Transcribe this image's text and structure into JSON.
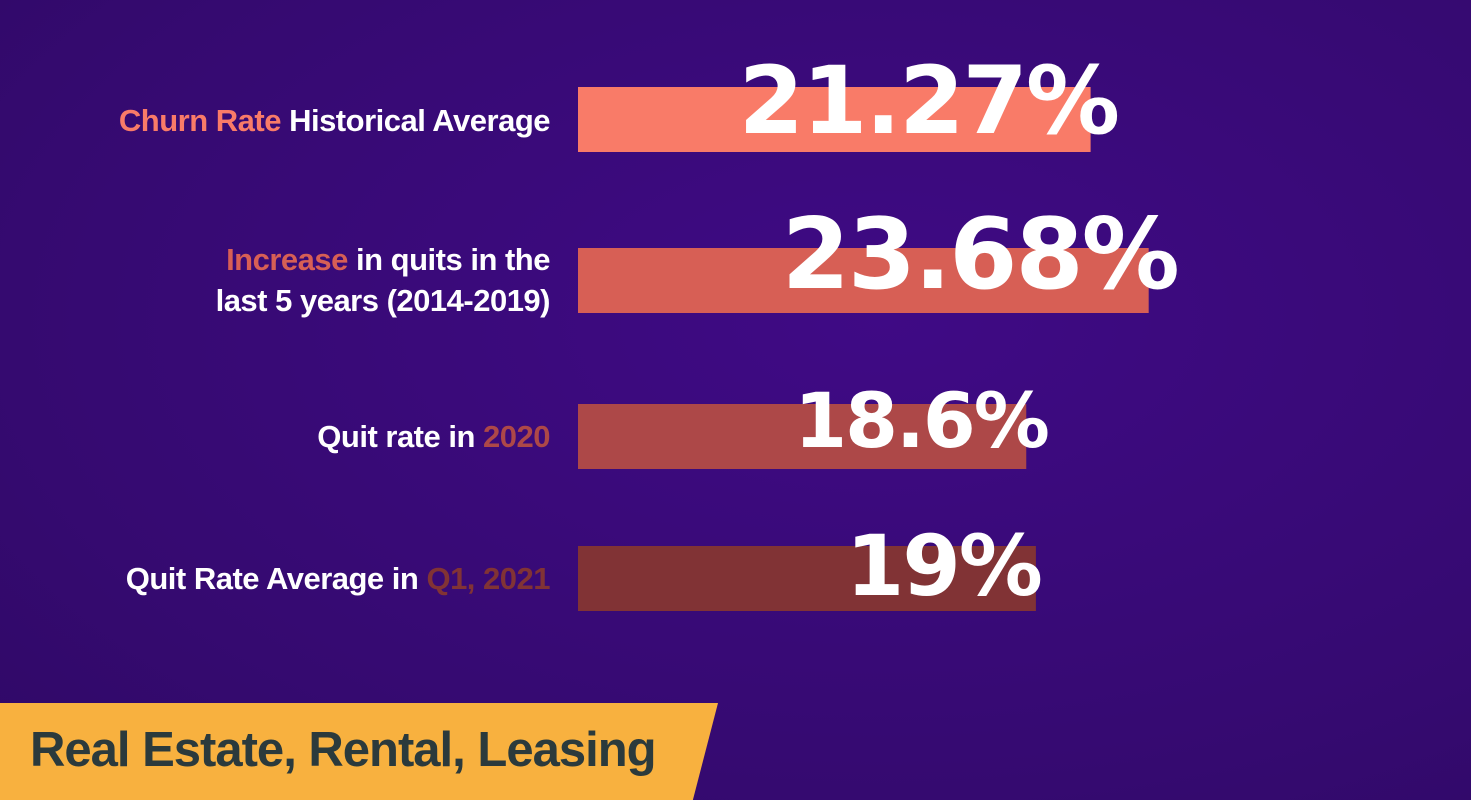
{
  "chart_data": {
    "type": "bar",
    "orientation": "horizontal",
    "categories": [
      {
        "parts": [
          {
            "text": "Churn Rate",
            "highlight": true
          },
          {
            "text": " Historical Average",
            "highlight": false
          }
        ]
      },
      {
        "parts": [
          {
            "text": "Increase",
            "highlight": true
          },
          {
            "text": " in quits in the\nlast 5 years (2014-2019)",
            "highlight": false
          }
        ]
      },
      {
        "parts": [
          {
            "text": "Quit rate in ",
            "highlight": false
          },
          {
            "text": "2020",
            "highlight": true
          }
        ]
      },
      {
        "parts": [
          {
            "text": "Quit Rate Average in ",
            "highlight": false
          },
          {
            "text": "Q1, 2021",
            "highlight": true
          }
        ]
      }
    ],
    "values": [
      21.27,
      23.68,
      18.6,
      19
    ],
    "value_labels": [
      "21.27%",
      "23.68%",
      "18.6%",
      "19%"
    ],
    "bar_colors": [
      "#f97b68",
      "#d75f55",
      "#ad4848",
      "#813335"
    ],
    "highlight_colors": [
      "#f97b68",
      "#d75f55",
      "#ad4848",
      "#813335"
    ],
    "unit": "%"
  },
  "footer": {
    "label": "Real Estate, Rental, Leasing",
    "background_color": "#f8b13f",
    "text_color": "#2b3a3c"
  },
  "colors": {
    "background": "#3a0b7a",
    "label_text": "#ffffff"
  }
}
